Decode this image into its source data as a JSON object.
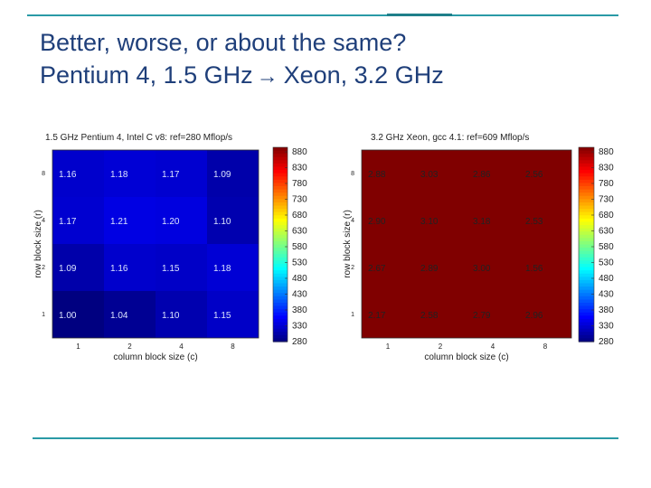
{
  "slide": {
    "title_line1": "Better, worse, or about the same?",
    "title_line2_left": "Pentium 4, 1.5 GHz",
    "title_arrow": "→",
    "title_line2_right": "Xeon, 3.2 GHz",
    "accent_color": "#2a9aa6",
    "title_color": "#1f3f7a"
  },
  "chart_data": [
    {
      "type": "heatmap",
      "title": "1.5 GHz Pentium 4, Intel C v8: ref=280 Mflop/s",
      "xlabel": "column block size (c)",
      "ylabel": "row block size (r)",
      "x": [
        "1",
        "2",
        "4",
        "8"
      ],
      "y": [
        "8",
        "4",
        "2",
        "1"
      ],
      "values": [
        [
          1.16,
          1.18,
          1.17,
          1.09
        ],
        [
          1.17,
          1.21,
          1.2,
          1.1
        ],
        [
          1.09,
          1.16,
          1.15,
          1.18
        ],
        [
          1.0,
          1.04,
          1.1,
          1.15
        ]
      ],
      "value_labels": [
        [
          "1.16",
          "1.18",
          "1.17",
          "1.09"
        ],
        [
          "1.17",
          "1.21",
          "1.20",
          "1.10"
        ],
        [
          "1.09",
          "1.16",
          "1.15",
          "1.18"
        ],
        [
          "1.00",
          "1.04",
          "1.10",
          "1.15"
        ]
      ],
      "ref_mflops": 280,
      "colorbar_ticks": [
        "880",
        "830",
        "780",
        "730",
        "680",
        "630",
        "580",
        "530",
        "480",
        "430",
        "380",
        "330",
        "280"
      ],
      "colorbar_range": [
        280,
        880
      ],
      "colormap": "jet"
    },
    {
      "type": "heatmap",
      "title": "3.2 GHz Xeon, gcc 4.1: ref=609 Mflop/s",
      "xlabel": "column block size (c)",
      "ylabel": "row block size (r)",
      "x": [
        "1",
        "2",
        "4",
        "8"
      ],
      "y": [
        "8",
        "4",
        "2",
        "1"
      ],
      "values": [
        [
          2.88,
          3.03,
          2.86,
          2.56
        ],
        [
          2.9,
          3.1,
          3.18,
          2.53
        ],
        [
          2.67,
          2.89,
          3.0,
          1.56
        ],
        [
          2.17,
          2.58,
          2.79,
          2.96
        ]
      ],
      "value_labels": [
        [
          "2.88",
          "3.03",
          "2.86",
          "2.56"
        ],
        [
          "2.90",
          "3.10",
          "3.18",
          "2.53"
        ],
        [
          "2.67",
          "2.89",
          "3.00",
          "1.56"
        ],
        [
          "2.17",
          "2.58",
          "2.79",
          "2.96"
        ]
      ],
      "ref_mflops": 609,
      "colorbar_ticks": [
        "880",
        "830",
        "780",
        "730",
        "680",
        "630",
        "580",
        "530",
        "480",
        "430",
        "380",
        "330",
        "280"
      ],
      "colorbar_range": [
        280,
        880
      ],
      "colormap": "jet"
    }
  ]
}
